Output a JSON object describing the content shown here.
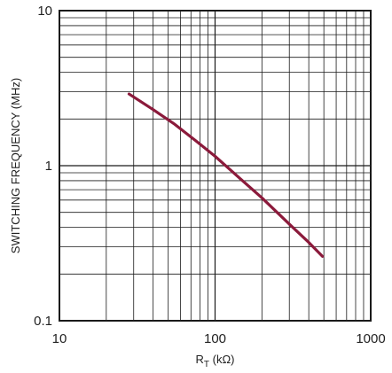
{
  "chart_data": {
    "type": "line",
    "xscale": "log",
    "yscale": "log",
    "xlim": [
      10,
      1000
    ],
    "ylim": [
      0.1,
      10
    ],
    "grid": true,
    "xlabel": {
      "main": "R",
      "sub": "T",
      "unit": " (kΩ)"
    },
    "ylabel": "SWITCHING FREQUENCY (MHz)",
    "x_ticks": [
      {
        "value": 10,
        "label": "10"
      },
      {
        "value": 100,
        "label": "100"
      },
      {
        "value": 1000,
        "label": "1000"
      }
    ],
    "y_ticks": [
      {
        "value": 0.1,
        "label": "0.1"
      },
      {
        "value": 1,
        "label": "1"
      },
      {
        "value": 10,
        "label": "10"
      }
    ],
    "series": [
      {
        "color": "#8b1a3b",
        "x": [
          28,
          40,
          55,
          75,
          100,
          150,
          200,
          300,
          400,
          490
        ],
        "y": [
          2.9,
          2.3,
          1.85,
          1.45,
          1.15,
          0.8,
          0.62,
          0.42,
          0.32,
          0.26
        ]
      }
    ]
  }
}
